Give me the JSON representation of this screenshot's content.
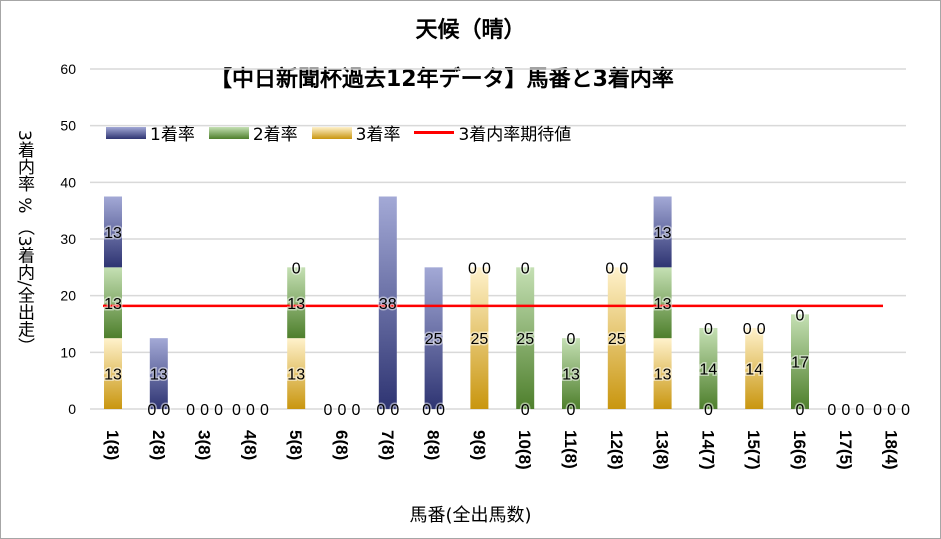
{
  "chart_data": {
    "type": "bar",
    "stacked": true,
    "title": "天候（晴）",
    "subtitle": "【中日新聞杯過去12年データ】馬番と3着内率",
    "xlabel": "馬番(全出馬数)",
    "ylabel": "3着内率 %  （3着内/全出走）",
    "ylim": [
      0,
      60
    ],
    "yticks": [
      0,
      10,
      20,
      30,
      40,
      50,
      60
    ],
    "grid": true,
    "legend_position": "top-left",
    "categories": [
      "1(8)",
      "2(8)",
      "3(8)",
      "4(8)",
      "5(8)",
      "6(8)",
      "7(8)",
      "8(8)",
      "9(8)",
      "10(8)",
      "11(8)",
      "12(8)",
      "13(8)",
      "14(7)",
      "15(7)",
      "16(6)",
      "17(5)",
      "18(4)"
    ],
    "series": [
      {
        "name": "3着率",
        "color": "#c9960f",
        "light": "#fff2cc",
        "values": [
          12.5,
          0,
          0,
          0,
          12.5,
          0,
          0,
          0,
          25,
          0,
          0,
          25,
          12.5,
          0,
          14.3,
          0,
          0,
          0
        ]
      },
      {
        "name": "2着率",
        "color": "#4e7f2c",
        "light": "#c5e0b4",
        "values": [
          12.5,
          0,
          0,
          0,
          12.5,
          0,
          0,
          0,
          0,
          25,
          12.5,
          0,
          12.5,
          14.3,
          0,
          16.7,
          0,
          0
        ]
      },
      {
        "name": "1着率",
        "color": "#2e3472",
        "light": "#a3a9d6",
        "values": [
          12.5,
          12.5,
          0,
          0,
          0,
          0,
          37.5,
          25,
          0,
          0,
          0,
          0,
          12.5,
          0,
          0,
          0,
          0,
          0
        ]
      }
    ],
    "line": {
      "name": "3着内率期待値",
      "color": "#ff0000",
      "value": 18.2
    }
  }
}
